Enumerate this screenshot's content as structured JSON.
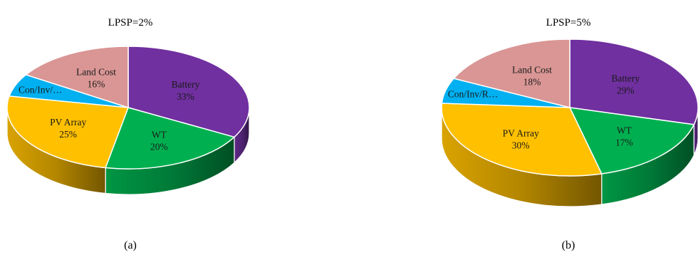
{
  "chart_data": [
    {
      "type": "pie",
      "title": "LPSP=2%",
      "caption": "(a)",
      "slices": [
        {
          "label": "Battery",
          "label_shown": "Battery",
          "value": 33,
          "value_label": "33%",
          "color": "#7030A0"
        },
        {
          "label": "WT",
          "label_shown": "WT",
          "value": 20,
          "value_label": "20%",
          "color": "#00B050"
        },
        {
          "label": "PV Array",
          "label_shown": "PV Array",
          "value": 25,
          "value_label": "25%",
          "color": "#FFC000"
        },
        {
          "label": "Con/Inv/…",
          "label_shown": "Con/Inv/…",
          "value": 6,
          "value_label": "",
          "color": "#00B0F0"
        },
        {
          "label": "Land Cost",
          "label_shown": "Land Cost",
          "value": 16,
          "value_label": "16%",
          "color": "#D99694"
        }
      ]
    },
    {
      "type": "pie",
      "title": "LPSP=5%",
      "caption": "(b)",
      "slices": [
        {
          "label": "Battery",
          "label_shown": "Battery",
          "value": 29,
          "value_label": "29%",
          "color": "#7030A0"
        },
        {
          "label": "WT",
          "label_shown": "WT",
          "value": 17,
          "value_label": "17%",
          "color": "#00B050"
        },
        {
          "label": "PV Array",
          "label_shown": "PV Array",
          "value": 30,
          "value_label": "30%",
          "color": "#FFC000"
        },
        {
          "label": "Con/Inv/R…",
          "label_shown": "Con/Inv/R…",
          "value": 6,
          "value_label": "",
          "color": "#00B0F0"
        },
        {
          "label": "Land Cost",
          "label_shown": "Land Cost",
          "value": 18,
          "value_label": "18%",
          "color": "#D99694"
        }
      ]
    }
  ]
}
